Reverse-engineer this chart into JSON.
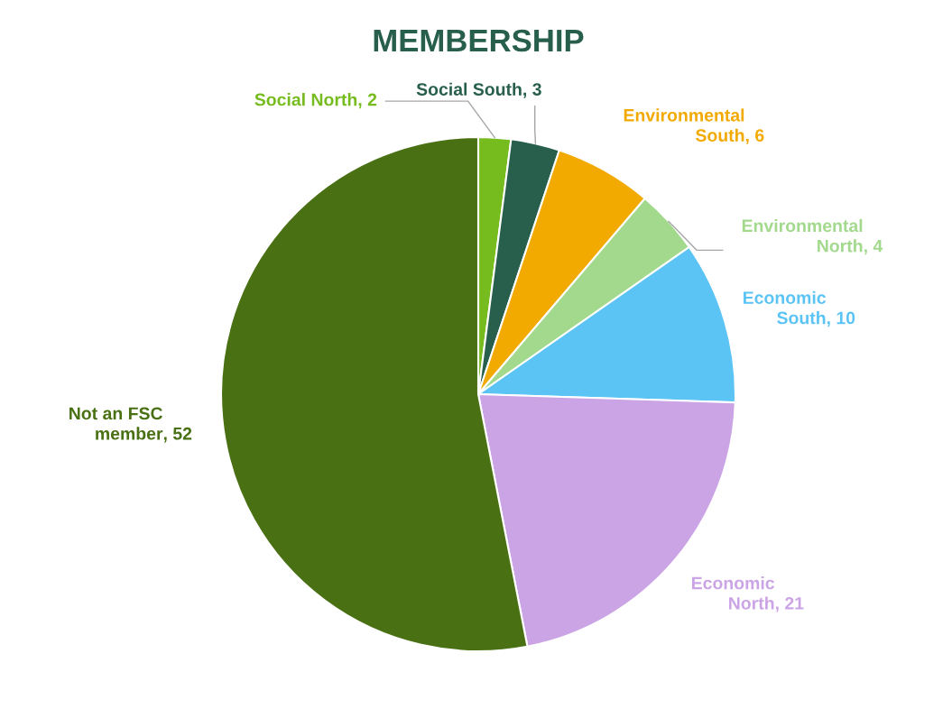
{
  "chart_data": {
    "type": "pie",
    "title": "MEMBERSHIP",
    "categories": [
      "Social North",
      "Social South",
      "Environmental South",
      "Environmental North",
      "Economic South",
      "Economic North",
      "Not an FSC member"
    ],
    "values": [
      2,
      3,
      6,
      4,
      10,
      21,
      52
    ],
    "colors": [
      "#77bc1f",
      "#275e4c",
      "#f2a900",
      "#a2d98d",
      "#5bc4f5",
      "#cba4e6",
      "#4a7014"
    ],
    "value_labels": [
      ", 2",
      ", 3",
      ", 6",
      ", 4",
      ", 10",
      ", 21",
      ", 52"
    ],
    "legend": false
  }
}
